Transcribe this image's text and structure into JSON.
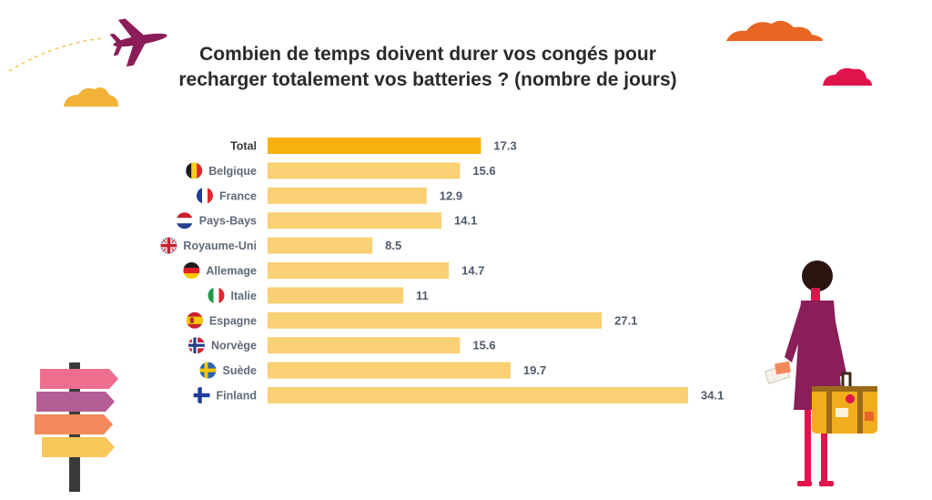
{
  "chart_data": {
    "type": "bar",
    "orientation": "horizontal",
    "title_lines": [
      "Combien de temps doivent durer vos congés pour",
      "recharger totalement vos batteries ? (nombre de jours)"
    ],
    "categories": [
      "Total",
      "Belgique",
      "France",
      "Pays-Bays",
      "Royaume-Uni",
      "Allemage",
      "Italie",
      "Espagne",
      "Norvège",
      "Suède",
      "Finland"
    ],
    "values": [
      17.3,
      15.6,
      12.9,
      14.1,
      8.5,
      14.7,
      11,
      27.1,
      15.6,
      19.7,
      34.1
    ],
    "value_labels": [
      "17.3",
      "15.6",
      "12.9",
      "14.1",
      "8.5",
      "14.7",
      "11",
      "27.1",
      "15.6",
      "19.7",
      "34.1"
    ],
    "flags": [
      "none",
      "belgium-flag-icon",
      "france-flag-icon",
      "netherlands-flag-icon",
      "uk-flag-icon",
      "germany-flag-icon",
      "italy-flag-icon",
      "spain-flag-icon",
      "norway-flag-icon",
      "sweden-flag-icon",
      "finland-flag-icon"
    ],
    "xlim": [
      0,
      34.1
    ],
    "grid": false,
    "legend": "none",
    "colors": {
      "highlight_bar": "#f6b10e",
      "bar": "#f9d073",
      "total_label": "#3a3a3a",
      "label": "#5f6b7a",
      "value": "#4f5b6b"
    }
  },
  "decorations": {
    "icons": [
      "airplane-icon",
      "cloud-icon",
      "signpost-icon",
      "traveler-illustration",
      "suitcase-icon"
    ],
    "colors": {
      "plane": "#8b1d58",
      "cloud_yellow": "#f3b23a",
      "cloud_orange": "#e96524",
      "cloud_red": "#e0144a",
      "dress": "#8a1e58",
      "suitcase": "#f1ad1e"
    }
  }
}
